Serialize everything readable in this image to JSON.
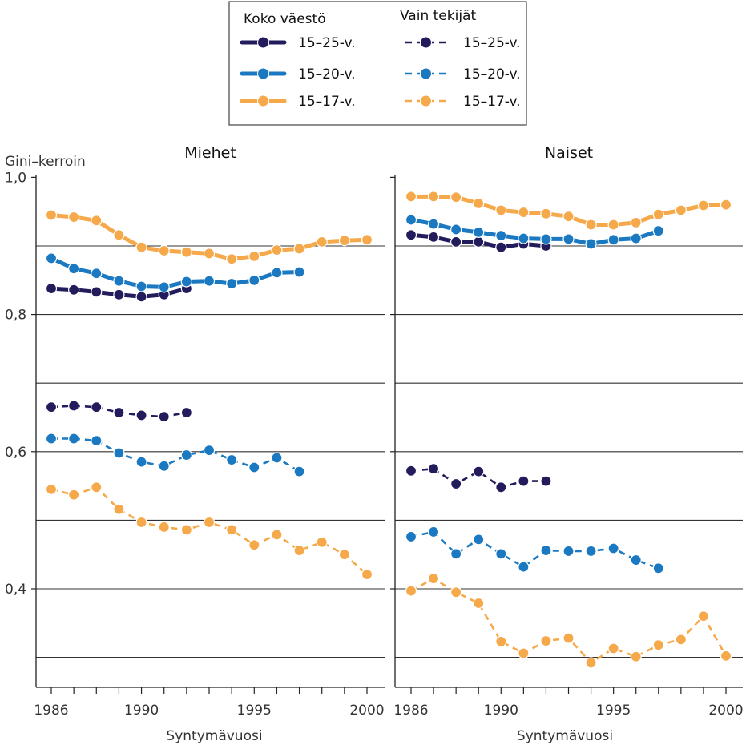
{
  "legend": {
    "group_titles": [
      "Koko väestö",
      "Vain tekijät"
    ]
  },
  "colors": {
    "15-25": "#221c5c",
    "15-20": "#1a79c0",
    "15-17": "#f5a94a",
    "grid": "#333333"
  },
  "chart_data": [
    {
      "type": "line",
      "title": "Miehet",
      "ylabel": "Gini–kerroin",
      "xlabel": "Syntymävuosi",
      "xlim": [
        1986,
        2000
      ],
      "ylim": [
        0.27,
        1.0
      ],
      "x_ticks": [
        "1986",
        "1990",
        "1995",
        "2000"
      ],
      "y_ticks": [
        "1,0",
        "0,8",
        "0,6",
        "0,4"
      ],
      "series": [
        {
          "name": "15–25-v.",
          "group": "Koko väestö",
          "style": "solid",
          "color_key": "15-25",
          "x": [
            1986,
            1987,
            1988,
            1989,
            1990,
            1991,
            1992
          ],
          "y": [
            0.838,
            0.836,
            0.833,
            0.829,
            0.826,
            0.829,
            0.838
          ]
        },
        {
          "name": "15–20-v.",
          "group": "Koko väestö",
          "style": "solid",
          "color_key": "15-20",
          "x": [
            1986,
            1987,
            1988,
            1989,
            1990,
            1991,
            1992,
            1993,
            1994,
            1995,
            1996,
            1997
          ],
          "y": [
            0.882,
            0.867,
            0.86,
            0.849,
            0.841,
            0.84,
            0.848,
            0.849,
            0.845,
            0.85,
            0.861,
            0.862
          ]
        },
        {
          "name": "15–17-v.",
          "group": "Koko väestö",
          "style": "solid",
          "color_key": "15-17",
          "x": [
            1986,
            1987,
            1988,
            1989,
            1990,
            1991,
            1992,
            1993,
            1994,
            1995,
            1996,
            1997,
            1998,
            1999,
            2000
          ],
          "y": [
            0.945,
            0.942,
            0.937,
            0.916,
            0.898,
            0.893,
            0.891,
            0.889,
            0.881,
            0.885,
            0.894,
            0.896,
            0.906,
            0.908,
            0.909
          ]
        },
        {
          "name": "15–25-v.",
          "group": "Vain tekijät",
          "style": "dashed",
          "color_key": "15-25",
          "x": [
            1986,
            1987,
            1988,
            1989,
            1990,
            1991,
            1992
          ],
          "y": [
            0.665,
            0.667,
            0.665,
            0.657,
            0.653,
            0.651,
            0.657
          ]
        },
        {
          "name": "15–20-v.",
          "group": "Vain tekijät",
          "style": "dashed",
          "color_key": "15-20",
          "x": [
            1986,
            1987,
            1988,
            1989,
            1990,
            1991,
            1992,
            1993,
            1994,
            1995,
            1996,
            1997
          ],
          "y": [
            0.619,
            0.619,
            0.616,
            0.598,
            0.585,
            0.579,
            0.595,
            0.602,
            0.588,
            0.577,
            0.591,
            0.571
          ]
        },
        {
          "name": "15–17-v.",
          "group": "Vain tekijät",
          "style": "dashed",
          "color_key": "15-17",
          "x": [
            1986,
            1987,
            1988,
            1989,
            1990,
            1991,
            1992,
            1993,
            1994,
            1995,
            1996,
            1997,
            1998,
            1999,
            2000
          ],
          "y": [
            0.545,
            0.537,
            0.548,
            0.516,
            0.497,
            0.49,
            0.486,
            0.497,
            0.486,
            0.464,
            0.479,
            0.456,
            0.468,
            0.45,
            0.421
          ]
        }
      ]
    },
    {
      "type": "line",
      "title": "Naiset",
      "ylabel": "",
      "xlabel": "Syntymävuosi",
      "xlim": [
        1986,
        2000
      ],
      "ylim": [
        0.27,
        1.0
      ],
      "x_ticks": [
        "1986",
        "1990",
        "1995",
        "2000"
      ],
      "y_ticks": [],
      "series": [
        {
          "name": "15–25-v.",
          "group": "Koko väestö",
          "style": "solid",
          "color_key": "15-25",
          "x": [
            1986,
            1987,
            1988,
            1989,
            1990,
            1991,
            1992
          ],
          "y": [
            0.916,
            0.913,
            0.906,
            0.906,
            0.898,
            0.903,
            0.9
          ]
        },
        {
          "name": "15–20-v.",
          "group": "Koko väestö",
          "style": "solid",
          "color_key": "15-20",
          "x": [
            1986,
            1987,
            1988,
            1989,
            1990,
            1991,
            1992,
            1993,
            1994,
            1995,
            1996,
            1997
          ],
          "y": [
            0.938,
            0.932,
            0.924,
            0.92,
            0.915,
            0.911,
            0.91,
            0.91,
            0.903,
            0.909,
            0.911,
            0.922
          ]
        },
        {
          "name": "15–17-v.",
          "group": "Koko väestö",
          "style": "solid",
          "color_key": "15-17",
          "x": [
            1986,
            1987,
            1988,
            1989,
            1990,
            1991,
            1992,
            1993,
            1994,
            1995,
            1996,
            1997,
            1998,
            1999,
            2000
          ],
          "y": [
            0.972,
            0.972,
            0.971,
            0.962,
            0.952,
            0.949,
            0.947,
            0.943,
            0.931,
            0.931,
            0.934,
            0.946,
            0.952,
            0.959,
            0.96
          ]
        },
        {
          "name": "15–25-v.",
          "group": "Vain tekijät",
          "style": "dashed",
          "color_key": "15-25",
          "x": [
            1986,
            1987,
            1988,
            1989,
            1990,
            1991,
            1992
          ],
          "y": [
            0.572,
            0.575,
            0.553,
            0.571,
            0.548,
            0.557,
            0.557
          ]
        },
        {
          "name": "15–20-v.",
          "group": "Vain tekijät",
          "style": "dashed",
          "color_key": "15-20",
          "x": [
            1986,
            1987,
            1988,
            1989,
            1990,
            1991,
            1992,
            1993,
            1994,
            1995,
            1996,
            1997
          ],
          "y": [
            0.476,
            0.483,
            0.451,
            0.472,
            0.451,
            0.432,
            0.456,
            0.455,
            0.455,
            0.459,
            0.442,
            0.43
          ]
        },
        {
          "name": "15–17-v.",
          "group": "Vain tekijät",
          "style": "dashed",
          "color_key": "15-17",
          "x": [
            1986,
            1987,
            1988,
            1989,
            1990,
            1991,
            1992,
            1993,
            1994,
            1995,
            1996,
            1997,
            1998,
            1999,
            2000
          ],
          "y": [
            0.397,
            0.415,
            0.395,
            0.379,
            0.323,
            0.306,
            0.324,
            0.328,
            0.292,
            0.313,
            0.301,
            0.318,
            0.326,
            0.36,
            0.302
          ]
        }
      ]
    }
  ]
}
